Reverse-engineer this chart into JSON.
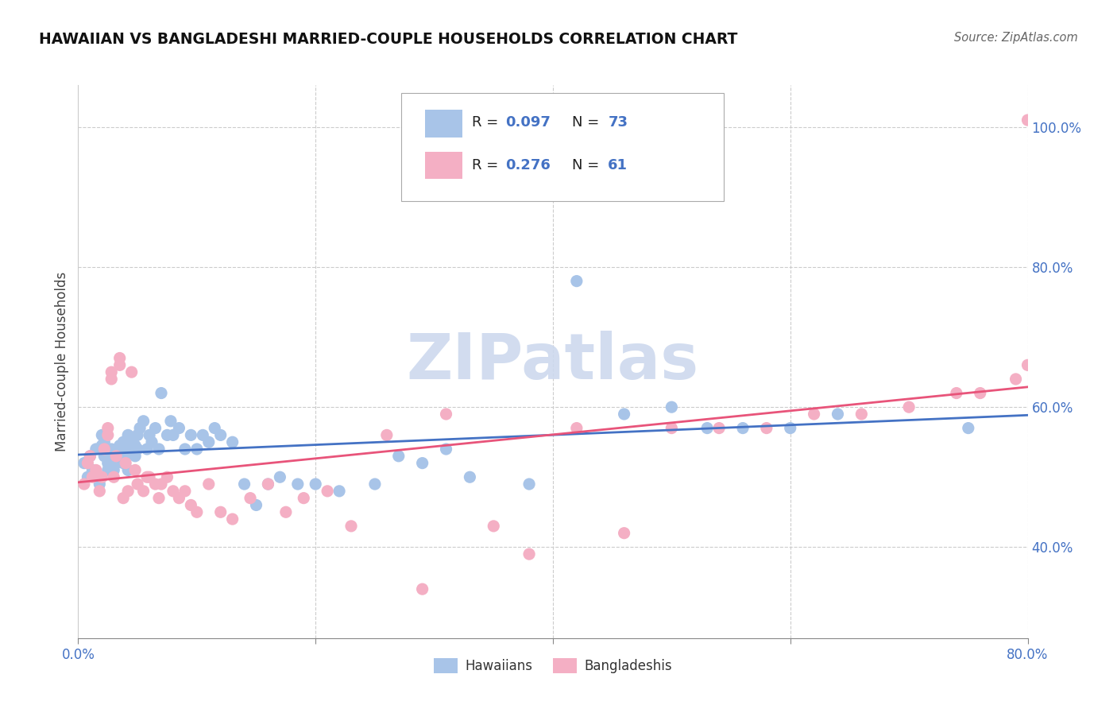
{
  "title": "HAWAIIAN VS BANGLADESHI MARRIED-COUPLE HOUSEHOLDS CORRELATION CHART",
  "source": "Source: ZipAtlas.com",
  "ylabel": "Married-couple Households",
  "xlim": [
    0.0,
    0.8
  ],
  "ylim": [
    0.27,
    1.06
  ],
  "color_hawaiian": "#a8c4e8",
  "color_bangladeshi": "#f4afc4",
  "color_blue": "#4472C4",
  "color_pink": "#e8547a",
  "color_ytick": "#4472C4",
  "watermark_color": "#cdd9ee",
  "hawaiian_x": [
    0.005,
    0.008,
    0.01,
    0.012,
    0.015,
    0.018,
    0.02,
    0.02,
    0.022,
    0.022,
    0.025,
    0.025,
    0.028,
    0.028,
    0.03,
    0.03,
    0.032,
    0.032,
    0.035,
    0.035,
    0.038,
    0.038,
    0.04,
    0.04,
    0.042,
    0.042,
    0.045,
    0.045,
    0.048,
    0.048,
    0.05,
    0.05,
    0.052,
    0.055,
    0.058,
    0.06,
    0.062,
    0.065,
    0.068,
    0.07,
    0.075,
    0.078,
    0.08,
    0.085,
    0.09,
    0.095,
    0.1,
    0.105,
    0.11,
    0.115,
    0.12,
    0.13,
    0.14,
    0.15,
    0.16,
    0.17,
    0.185,
    0.2,
    0.22,
    0.25,
    0.27,
    0.29,
    0.31,
    0.33,
    0.38,
    0.42,
    0.46,
    0.5,
    0.53,
    0.56,
    0.6,
    0.64,
    0.75
  ],
  "hawaiian_y": [
    0.52,
    0.5,
    0.53,
    0.51,
    0.54,
    0.49,
    0.545,
    0.56,
    0.55,
    0.53,
    0.52,
    0.51,
    0.54,
    0.52,
    0.51,
    0.53,
    0.54,
    0.52,
    0.53,
    0.545,
    0.55,
    0.52,
    0.54,
    0.53,
    0.56,
    0.51,
    0.55,
    0.54,
    0.53,
    0.545,
    0.54,
    0.56,
    0.57,
    0.58,
    0.54,
    0.56,
    0.55,
    0.57,
    0.54,
    0.62,
    0.56,
    0.58,
    0.56,
    0.57,
    0.54,
    0.56,
    0.54,
    0.56,
    0.55,
    0.57,
    0.56,
    0.55,
    0.49,
    0.46,
    0.49,
    0.5,
    0.49,
    0.49,
    0.48,
    0.49,
    0.53,
    0.52,
    0.54,
    0.5,
    0.49,
    0.78,
    0.59,
    0.6,
    0.57,
    0.57,
    0.57,
    0.59,
    0.57
  ],
  "bangladeshi_x": [
    0.005,
    0.008,
    0.01,
    0.012,
    0.015,
    0.018,
    0.02,
    0.022,
    0.025,
    0.025,
    0.028,
    0.028,
    0.03,
    0.032,
    0.035,
    0.035,
    0.038,
    0.04,
    0.042,
    0.045,
    0.048,
    0.05,
    0.055,
    0.058,
    0.06,
    0.065,
    0.068,
    0.07,
    0.075,
    0.08,
    0.085,
    0.09,
    0.095,
    0.1,
    0.11,
    0.12,
    0.13,
    0.145,
    0.16,
    0.175,
    0.19,
    0.21,
    0.23,
    0.26,
    0.29,
    0.31,
    0.35,
    0.38,
    0.42,
    0.46,
    0.5,
    0.54,
    0.58,
    0.62,
    0.66,
    0.7,
    0.74,
    0.76,
    0.79,
    0.8,
    0.8
  ],
  "bangladeshi_y": [
    0.49,
    0.52,
    0.53,
    0.5,
    0.51,
    0.48,
    0.5,
    0.54,
    0.56,
    0.57,
    0.64,
    0.65,
    0.5,
    0.53,
    0.66,
    0.67,
    0.47,
    0.52,
    0.48,
    0.65,
    0.51,
    0.49,
    0.48,
    0.5,
    0.5,
    0.49,
    0.47,
    0.49,
    0.5,
    0.48,
    0.47,
    0.48,
    0.46,
    0.45,
    0.49,
    0.45,
    0.44,
    0.47,
    0.49,
    0.45,
    0.47,
    0.48,
    0.43,
    0.56,
    0.34,
    0.59,
    0.43,
    0.39,
    0.57,
    0.42,
    0.57,
    0.57,
    0.57,
    0.59,
    0.59,
    0.6,
    0.62,
    0.62,
    0.64,
    0.66,
    1.01
  ]
}
